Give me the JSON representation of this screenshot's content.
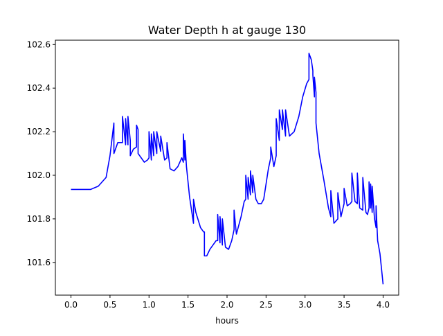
{
  "chart_data": {
    "type": "line",
    "title": "Water Depth h at gauge 130",
    "xlabel": "hours",
    "ylabel": "",
    "xlim": [
      -0.2,
      4.2
    ],
    "ylim": [
      101.45,
      102.62
    ],
    "xticks": [
      0.0,
      0.5,
      1.0,
      1.5,
      2.0,
      2.5,
      3.0,
      3.5,
      4.0
    ],
    "xtick_labels": [
      "0.0",
      "0.5",
      "1.0",
      "1.5",
      "2.0",
      "2.5",
      "3.0",
      "3.5",
      "4.0"
    ],
    "yticks": [
      101.6,
      101.8,
      102.0,
      102.2,
      102.4,
      102.6
    ],
    "ytick_labels": [
      "101.6",
      "101.8",
      "102.0",
      "102.2",
      "102.4",
      "102.6"
    ],
    "grid": false,
    "legend": "none",
    "series": [
      {
        "color": "#0000ff",
        "x": [
          0.0,
          0.25,
          0.35,
          0.45,
          0.5,
          0.55,
          0.55,
          0.6,
          0.62,
          0.66,
          0.66,
          0.7,
          0.7,
          0.73,
          0.73,
          0.76,
          0.76,
          0.8,
          0.84,
          0.84,
          0.86,
          0.86,
          0.9,
          0.94,
          0.98,
          1.0,
          1.0,
          1.03,
          1.03,
          1.06,
          1.06,
          1.1,
          1.1,
          1.15,
          1.15,
          1.2,
          1.23,
          1.23,
          1.27,
          1.32,
          1.37,
          1.42,
          1.44,
          1.44,
          1.46,
          1.46,
          1.48,
          1.52,
          1.57,
          1.57,
          1.6,
          1.66,
          1.7,
          1.71,
          1.71,
          1.74,
          1.78,
          1.82,
          1.86,
          1.88,
          1.88,
          1.91,
          1.91,
          1.94,
          1.94,
          1.98,
          2.02,
          2.06,
          2.09,
          2.09,
          2.12,
          2.18,
          2.22,
          2.24,
          2.24,
          2.27,
          2.27,
          2.3,
          2.3,
          2.33,
          2.33,
          2.37,
          2.4,
          2.44,
          2.47,
          2.5,
          2.53,
          2.56,
          2.56,
          2.6,
          2.63,
          2.63,
          2.67,
          2.67,
          2.71,
          2.71,
          2.75,
          2.75,
          2.8,
          2.86,
          2.92,
          2.97,
          3.02,
          3.05,
          3.05,
          3.08,
          3.1,
          3.1,
          3.12,
          3.12,
          3.14,
          3.14,
          3.18,
          3.24,
          3.3,
          3.33,
          3.33,
          3.37,
          3.42,
          3.42,
          3.46,
          3.5,
          3.5,
          3.54,
          3.58,
          3.6,
          3.6,
          3.64,
          3.67,
          3.67,
          3.7,
          3.74,
          3.74,
          3.78,
          3.8,
          3.82,
          3.82,
          3.84,
          3.84,
          3.86,
          3.86,
          3.89,
          3.91,
          3.91,
          3.93,
          3.96,
          4.0
        ],
        "y": [
          101.935,
          101.935,
          101.95,
          101.99,
          102.09,
          102.24,
          102.1,
          102.15,
          102.15,
          102.15,
          102.27,
          102.14,
          102.26,
          102.14,
          102.27,
          102.16,
          102.09,
          102.12,
          102.13,
          102.23,
          102.21,
          102.1,
          102.08,
          102.06,
          102.07,
          102.08,
          102.2,
          102.07,
          102.19,
          102.09,
          102.2,
          102.1,
          102.2,
          102.11,
          102.18,
          102.07,
          102.08,
          102.15,
          102.03,
          102.02,
          102.04,
          102.08,
          102.06,
          102.19,
          102.07,
          102.16,
          102.04,
          101.9,
          101.78,
          101.89,
          101.83,
          101.76,
          101.74,
          101.74,
          101.63,
          101.63,
          101.66,
          101.68,
          101.7,
          101.7,
          101.82,
          101.69,
          101.81,
          101.68,
          101.8,
          101.67,
          101.66,
          101.7,
          101.75,
          101.84,
          101.73,
          101.81,
          101.88,
          101.89,
          102.0,
          101.89,
          101.99,
          101.91,
          102.02,
          101.92,
          102.0,
          101.89,
          101.87,
          101.87,
          101.89,
          101.96,
          102.03,
          102.08,
          102.13,
          102.04,
          102.09,
          102.26,
          102.16,
          102.3,
          102.21,
          102.3,
          102.18,
          102.3,
          102.18,
          102.2,
          102.27,
          102.36,
          102.42,
          102.44,
          102.56,
          102.53,
          102.48,
          102.46,
          102.36,
          102.45,
          102.38,
          102.24,
          102.1,
          101.98,
          101.85,
          101.81,
          101.93,
          101.78,
          101.8,
          101.92,
          101.81,
          101.87,
          101.94,
          101.86,
          101.87,
          101.88,
          102.01,
          101.88,
          101.87,
          102.01,
          101.85,
          101.84,
          101.99,
          101.83,
          101.82,
          101.85,
          101.97,
          101.85,
          101.96,
          101.83,
          101.95,
          101.8,
          101.76,
          101.86,
          101.7,
          101.64,
          101.5
        ]
      }
    ]
  }
}
